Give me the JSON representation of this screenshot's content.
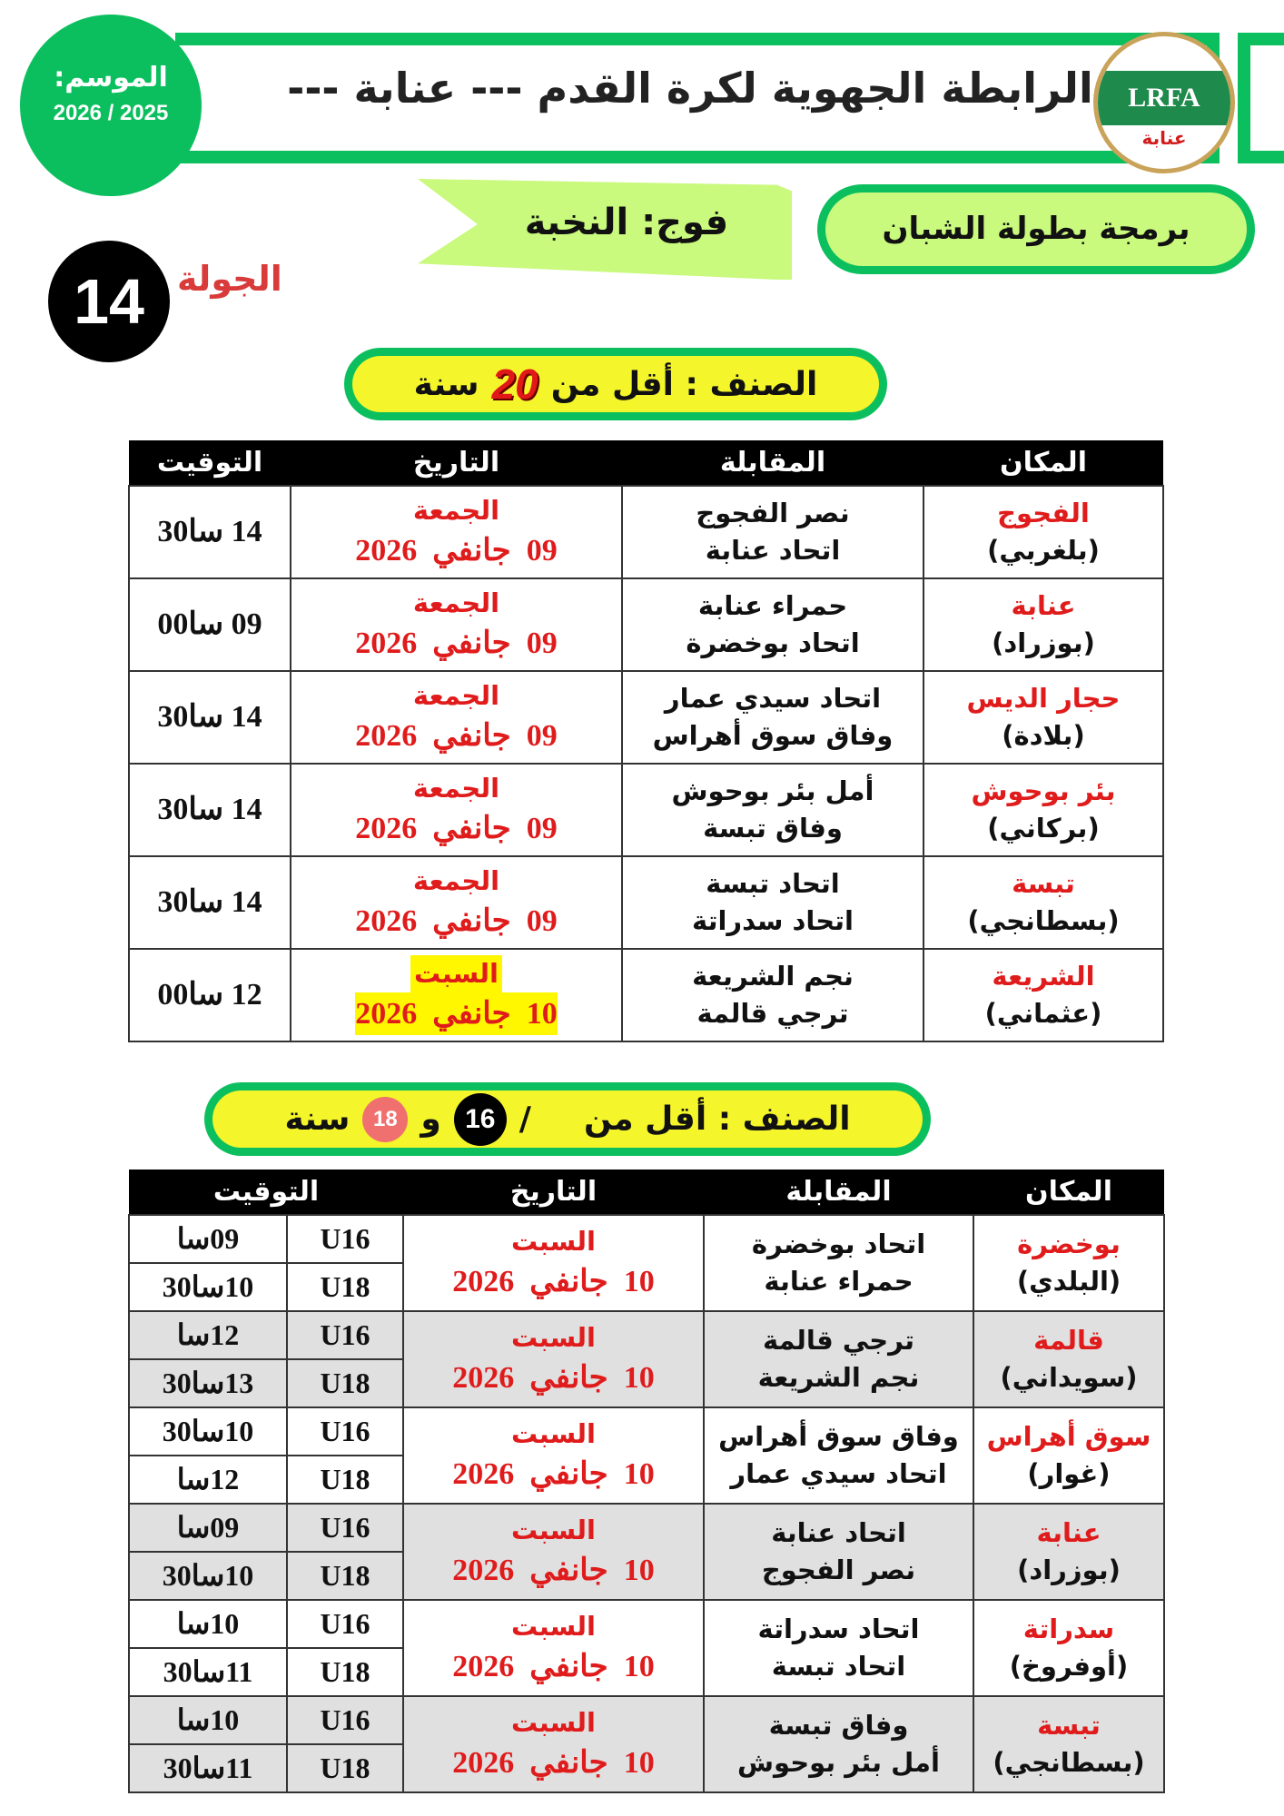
{
  "header": {
    "title": "الرابطة الجهوية  لكرة القدم --- عنابة ---",
    "season_label": "الموسم:",
    "season_value": "2026 / 2025",
    "logo_text": "LRFA",
    "logo_city": "عنابة"
  },
  "program": "برمجة بطولة الشبان",
  "group": "فوج: النخبة",
  "round": {
    "label": "الجولة",
    "number": "14"
  },
  "colors": {
    "green": "#0cbf5e",
    "lime": "#c9f97d",
    "yellow": "#f4f52a",
    "red": "#e01b1b"
  },
  "category1": {
    "prefix": "الصنف : أقل من",
    "age": "20",
    "suffix": "سنة"
  },
  "table1": {
    "headers": [
      "المكان",
      "المقابلة",
      "التاريخ",
      "التوقيت"
    ],
    "rows": [
      {
        "venue": "الفجوج",
        "stadium": "(بلغربي)",
        "home": "نصر الفجوج",
        "away": "اتحاد عنابة",
        "day": "الجمعة",
        "date": "09  جانفي  2026",
        "time": "14 سا30",
        "highlight": false
      },
      {
        "venue": "عنابة",
        "stadium": "(بوزراد)",
        "home": "حمراء عنابة",
        "away": "اتحاد بوخضرة",
        "day": "الجمعة",
        "date": "09  جانفي  2026",
        "time": "09 سا00",
        "highlight": false
      },
      {
        "venue": "حجار الديس",
        "stadium": "(بلادة)",
        "home": "اتحاد سيدي عمار",
        "away": "وفاق سوق أهراس",
        "day": "الجمعة",
        "date": "09  جانفي  2026",
        "time": "14 سا30",
        "highlight": false
      },
      {
        "venue": "بئر بوحوش",
        "stadium": "(بركاني)",
        "home": "أمل بئر بوحوش",
        "away": "وفاق تبسة",
        "day": "الجمعة",
        "date": "09  جانفي  2026",
        "time": "14 سا30",
        "highlight": false
      },
      {
        "venue": "تبسة",
        "stadium": "(بسطانجي)",
        "home": "اتحاد تبسة",
        "away": "اتحاد سدراتة",
        "day": "الجمعة",
        "date": "09  جانفي  2026",
        "time": "14 سا30",
        "highlight": false
      },
      {
        "venue": "الشريعة",
        "stadium": "(عثماني)",
        "home": "نجم الشريعة",
        "away": "ترجي قالمة",
        "day": "السبت",
        "date": "10  جانفي  2026",
        "time": "12 سا00",
        "highlight": true
      }
    ]
  },
  "category2": {
    "prefix": "الصنف : أقل من",
    "age1": "16",
    "slash": "/",
    "and": "و",
    "age2": "18",
    "suffix": "سنة"
  },
  "table2": {
    "headers": [
      "المكان",
      "المقابلة",
      "التاريخ",
      "التوقيت"
    ],
    "rows": [
      {
        "venue": "بوخضرة",
        "stadium": "(البلدي)",
        "home": "اتحاد بوخضرة",
        "away": "حمراء عنابة",
        "day": "السبت",
        "date": "10  جانفي  2026",
        "u16": "U16",
        "t16": "09سا",
        "u18": "U18",
        "t18": "10سا30"
      },
      {
        "venue": "قالمة",
        "stadium": "(سويداني)",
        "home": "ترجي قالمة",
        "away": "نجم الشريعة",
        "day": "السبت",
        "date": "10  جانفي  2026",
        "u16": "U16",
        "t16": "12سا",
        "u18": "U18",
        "t18": "13سا30"
      },
      {
        "venue": "سوق أهراس",
        "stadium": "(غوار)",
        "home": "وفاق سوق أهراس",
        "away": "اتحاد سيدي عمار",
        "day": "السبت",
        "date": "10  جانفي  2026",
        "u16": "U16",
        "t16": "10سا30",
        "u18": "U18",
        "t18": "12سا"
      },
      {
        "venue": "عنابة",
        "stadium": "(بوزراد)",
        "home": "اتحاد عنابة",
        "away": "نصر الفجوج",
        "day": "السبت",
        "date": "10  جانفي  2026",
        "u16": "U16",
        "t16": "09سا",
        "u18": "U18",
        "t18": "10سا30"
      },
      {
        "venue": "سدراتة",
        "stadium": "(أوفروخ)",
        "home": "اتحاد سدراتة",
        "away": "اتحاد تبسة",
        "day": "السبت",
        "date": "10  جانفي  2026",
        "u16": "U16",
        "t16": "10سا",
        "u18": "U18",
        "t18": "11سا30"
      },
      {
        "venue": "تبسة",
        "stadium": "(بسطانجي)",
        "home": "وفاق تبسة",
        "away": "أمل بئر بوحوش",
        "day": "السبت",
        "date": "10  جانفي  2026",
        "u16": "U16",
        "t16": "10سا",
        "u18": "U18",
        "t18": "11سا30"
      }
    ]
  }
}
